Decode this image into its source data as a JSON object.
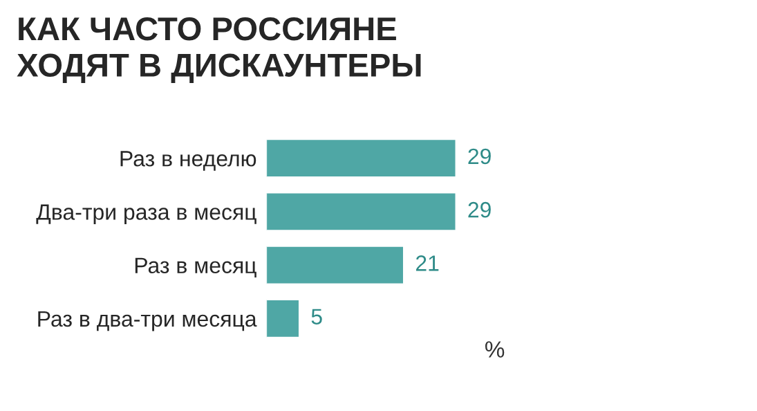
{
  "chart_data": {
    "type": "bar",
    "orientation": "horizontal",
    "title": "КАК ЧАСТО РОССИЯНЕ\nХОДЯТ В ДИСКАУНТЕРЫ",
    "categories": [
      "Раз в неделю",
      "Два-три раза в месяц",
      "Раз в месяц",
      "Раз в два-три месяца"
    ],
    "values": [
      29,
      29,
      21,
      5
    ],
    "color": "#4fa7a5",
    "data_labels": true,
    "grid": false,
    "legend": false,
    "annotations": [
      "%"
    ]
  }
}
